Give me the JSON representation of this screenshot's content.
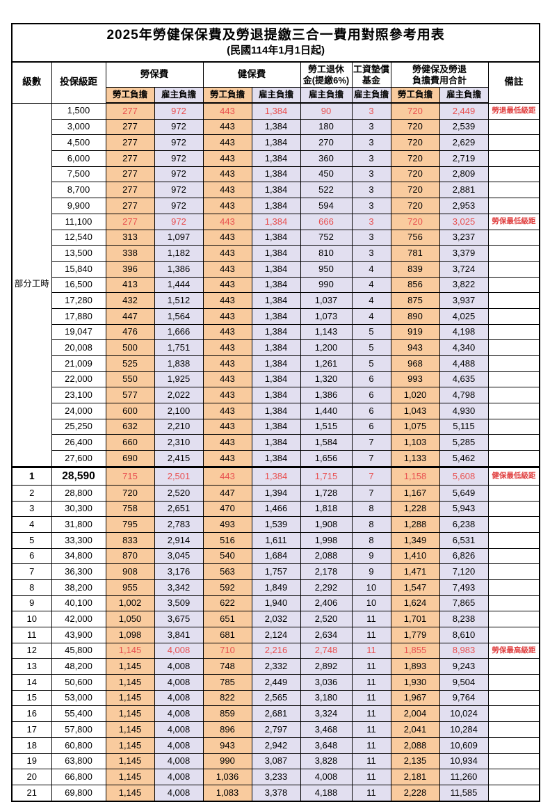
{
  "title": "2025年勞健保保費及勞退提繳三合一費用對照參考用表",
  "subtitle": "(民國114年1月1日起)",
  "header": {
    "level": "級數",
    "bracket": "投保級距",
    "labor_fee": "勞保費",
    "health_fee": "健保費",
    "pension_line1": "勞工退休",
    "pension_line2": "金(提繳6%)",
    "wage_fund_line1": "工資墊償",
    "wage_fund_line2": "基金",
    "total_line1": "勞健保及勞退",
    "total_line2": "負擔費用合計",
    "note": "備註",
    "employee_share": "勞工負擔",
    "employer_share": "雇主負擔"
  },
  "part_time_label": "部分工時",
  "value_columns": [
    "勞保費-勞工負擔",
    "勞保費-雇主負擔",
    "健保費-勞工負擔",
    "健保費-雇主負擔",
    "勞工退休金(提繳6%)-雇主負擔",
    "工資墊償基金-雇主負擔",
    "勞健保及勞退負擔費用合計-勞工負擔",
    "勞健保及勞退負擔費用合計-雇主負擔"
  ],
  "colors": {
    "employee_bg": "#F9CB9E",
    "employer_bg": "#E2DFF0",
    "value_red": "#E85050",
    "note_red": "#E04040"
  },
  "rows": [
    {
      "level": "",
      "bracket": "1,500",
      "v": [
        "277",
        "972",
        "443",
        "1,384",
        "90",
        "3",
        "720",
        "2,449"
      ],
      "note": "勞退最低級距",
      "red": true
    },
    {
      "level": "",
      "bracket": "3,000",
      "v": [
        "277",
        "972",
        "443",
        "1,384",
        "180",
        "3",
        "720",
        "2,539"
      ],
      "note": "",
      "red": false
    },
    {
      "level": "",
      "bracket": "4,500",
      "v": [
        "277",
        "972",
        "443",
        "1,384",
        "270",
        "3",
        "720",
        "2,629"
      ],
      "note": "",
      "red": false
    },
    {
      "level": "",
      "bracket": "6,000",
      "v": [
        "277",
        "972",
        "443",
        "1,384",
        "360",
        "3",
        "720",
        "2,719"
      ],
      "note": "",
      "red": false
    },
    {
      "level": "",
      "bracket": "7,500",
      "v": [
        "277",
        "972",
        "443",
        "1,384",
        "450",
        "3",
        "720",
        "2,809"
      ],
      "note": "",
      "red": false
    },
    {
      "level": "",
      "bracket": "8,700",
      "v": [
        "277",
        "972",
        "443",
        "1,384",
        "522",
        "3",
        "720",
        "2,881"
      ],
      "note": "",
      "red": false
    },
    {
      "level": "",
      "bracket": "9,900",
      "v": [
        "277",
        "972",
        "443",
        "1,384",
        "594",
        "3",
        "720",
        "2,953"
      ],
      "note": "",
      "red": false
    },
    {
      "level": "",
      "bracket": "11,100",
      "v": [
        "277",
        "972",
        "443",
        "1,384",
        "666",
        "3",
        "720",
        "3,025"
      ],
      "note": "勞保最低級距",
      "red": true
    },
    {
      "level": "",
      "bracket": "12,540",
      "v": [
        "313",
        "1,097",
        "443",
        "1,384",
        "752",
        "3",
        "756",
        "3,237"
      ],
      "note": "",
      "red": false
    },
    {
      "level": "",
      "bracket": "13,500",
      "v": [
        "338",
        "1,182",
        "443",
        "1,384",
        "810",
        "3",
        "781",
        "3,379"
      ],
      "note": "",
      "red": false
    },
    {
      "level": "",
      "bracket": "15,840",
      "v": [
        "396",
        "1,386",
        "443",
        "1,384",
        "950",
        "4",
        "839",
        "3,724"
      ],
      "note": "",
      "red": false
    },
    {
      "level": "",
      "bracket": "16,500",
      "v": [
        "413",
        "1,444",
        "443",
        "1,384",
        "990",
        "4",
        "856",
        "3,822"
      ],
      "note": "",
      "red": false
    },
    {
      "level": "",
      "bracket": "17,280",
      "v": [
        "432",
        "1,512",
        "443",
        "1,384",
        "1,037",
        "4",
        "875",
        "3,937"
      ],
      "note": "",
      "red": false
    },
    {
      "level": "",
      "bracket": "17,880",
      "v": [
        "447",
        "1,564",
        "443",
        "1,384",
        "1,073",
        "4",
        "890",
        "4,025"
      ],
      "note": "",
      "red": false
    },
    {
      "level": "",
      "bracket": "19,047",
      "v": [
        "476",
        "1,666",
        "443",
        "1,384",
        "1,143",
        "5",
        "919",
        "4,198"
      ],
      "note": "",
      "red": false
    },
    {
      "level": "",
      "bracket": "20,008",
      "v": [
        "500",
        "1,751",
        "443",
        "1,384",
        "1,200",
        "5",
        "943",
        "4,340"
      ],
      "note": "",
      "red": false
    },
    {
      "level": "",
      "bracket": "21,009",
      "v": [
        "525",
        "1,838",
        "443",
        "1,384",
        "1,261",
        "5",
        "968",
        "4,488"
      ],
      "note": "",
      "red": false
    },
    {
      "level": "",
      "bracket": "22,000",
      "v": [
        "550",
        "1,925",
        "443",
        "1,384",
        "1,320",
        "6",
        "993",
        "4,635"
      ],
      "note": "",
      "red": false
    },
    {
      "level": "",
      "bracket": "23,100",
      "v": [
        "577",
        "2,022",
        "443",
        "1,384",
        "1,386",
        "6",
        "1,020",
        "4,798"
      ],
      "note": "",
      "red": false
    },
    {
      "level": "",
      "bracket": "24,000",
      "v": [
        "600",
        "2,100",
        "443",
        "1,384",
        "1,440",
        "6",
        "1,043",
        "4,930"
      ],
      "note": "",
      "red": false
    },
    {
      "level": "",
      "bracket": "25,250",
      "v": [
        "632",
        "2,210",
        "443",
        "1,384",
        "1,515",
        "6",
        "1,075",
        "5,115"
      ],
      "note": "",
      "red": false
    },
    {
      "level": "",
      "bracket": "26,400",
      "v": [
        "660",
        "2,310",
        "443",
        "1,384",
        "1,584",
        "7",
        "1,103",
        "5,285"
      ],
      "note": "",
      "red": false
    },
    {
      "level": "",
      "bracket": "27,600",
      "v": [
        "690",
        "2,415",
        "443",
        "1,384",
        "1,656",
        "7",
        "1,133",
        "5,462"
      ],
      "note": "",
      "red": false
    },
    {
      "level": "1",
      "bracket": "28,590",
      "v": [
        "715",
        "2,501",
        "443",
        "1,384",
        "1,715",
        "7",
        "1,158",
        "5,608"
      ],
      "note": "健保最低級距",
      "red": true
    },
    {
      "level": "2",
      "bracket": "28,800",
      "v": [
        "720",
        "2,520",
        "447",
        "1,394",
        "1,728",
        "7",
        "1,167",
        "5,649"
      ],
      "note": "",
      "red": false
    },
    {
      "level": "3",
      "bracket": "30,300",
      "v": [
        "758",
        "2,651",
        "470",
        "1,466",
        "1,818",
        "8",
        "1,228",
        "5,943"
      ],
      "note": "",
      "red": false
    },
    {
      "level": "4",
      "bracket": "31,800",
      "v": [
        "795",
        "2,783",
        "493",
        "1,539",
        "1,908",
        "8",
        "1,288",
        "6,238"
      ],
      "note": "",
      "red": false
    },
    {
      "level": "5",
      "bracket": "33,300",
      "v": [
        "833",
        "2,914",
        "516",
        "1,611",
        "1,998",
        "8",
        "1,349",
        "6,531"
      ],
      "note": "",
      "red": false
    },
    {
      "level": "6",
      "bracket": "34,800",
      "v": [
        "870",
        "3,045",
        "540",
        "1,684",
        "2,088",
        "9",
        "1,410",
        "6,826"
      ],
      "note": "",
      "red": false
    },
    {
      "level": "7",
      "bracket": "36,300",
      "v": [
        "908",
        "3,176",
        "563",
        "1,757",
        "2,178",
        "9",
        "1,471",
        "7,120"
      ],
      "note": "",
      "red": false
    },
    {
      "level": "8",
      "bracket": "38,200",
      "v": [
        "955",
        "3,342",
        "592",
        "1,849",
        "2,292",
        "10",
        "1,547",
        "7,493"
      ],
      "note": "",
      "red": false
    },
    {
      "level": "9",
      "bracket": "40,100",
      "v": [
        "1,002",
        "3,509",
        "622",
        "1,940",
        "2,406",
        "10",
        "1,624",
        "7,865"
      ],
      "note": "",
      "red": false
    },
    {
      "level": "10",
      "bracket": "42,000",
      "v": [
        "1,050",
        "3,675",
        "651",
        "2,032",
        "2,520",
        "11",
        "1,701",
        "8,238"
      ],
      "note": "",
      "red": false
    },
    {
      "level": "11",
      "bracket": "43,900",
      "v": [
        "1,098",
        "3,841",
        "681",
        "2,124",
        "2,634",
        "11",
        "1,779",
        "8,610"
      ],
      "note": "",
      "red": false
    },
    {
      "level": "12",
      "bracket": "45,800",
      "v": [
        "1,145",
        "4,008",
        "710",
        "2,216",
        "2,748",
        "11",
        "1,855",
        "8,983"
      ],
      "note": "勞保最高級距",
      "red": true
    },
    {
      "level": "13",
      "bracket": "48,200",
      "v": [
        "1,145",
        "4,008",
        "748",
        "2,332",
        "2,892",
        "11",
        "1,893",
        "9,243"
      ],
      "note": "",
      "red": false
    },
    {
      "level": "14",
      "bracket": "50,600",
      "v": [
        "1,145",
        "4,008",
        "785",
        "2,449",
        "3,036",
        "11",
        "1,930",
        "9,504"
      ],
      "note": "",
      "red": false
    },
    {
      "level": "15",
      "bracket": "53,000",
      "v": [
        "1,145",
        "4,008",
        "822",
        "2,565",
        "3,180",
        "11",
        "1,967",
        "9,764"
      ],
      "note": "",
      "red": false
    },
    {
      "level": "16",
      "bracket": "55,400",
      "v": [
        "1,145",
        "4,008",
        "859",
        "2,681",
        "3,324",
        "11",
        "2,004",
        "10,024"
      ],
      "note": "",
      "red": false
    },
    {
      "level": "17",
      "bracket": "57,800",
      "v": [
        "1,145",
        "4,008",
        "896",
        "2,797",
        "3,468",
        "11",
        "2,041",
        "10,284"
      ],
      "note": "",
      "red": false
    },
    {
      "level": "18",
      "bracket": "60,800",
      "v": [
        "1,145",
        "4,008",
        "943",
        "2,942",
        "3,648",
        "11",
        "2,088",
        "10,609"
      ],
      "note": "",
      "red": false
    },
    {
      "level": "19",
      "bracket": "63,800",
      "v": [
        "1,145",
        "4,008",
        "990",
        "3,087",
        "3,828",
        "11",
        "2,135",
        "10,934"
      ],
      "note": "",
      "red": false
    },
    {
      "level": "20",
      "bracket": "66,800",
      "v": [
        "1,145",
        "4,008",
        "1,036",
        "3,233",
        "4,008",
        "11",
        "2,181",
        "11,260"
      ],
      "note": "",
      "red": false
    },
    {
      "level": "21",
      "bracket": "69,800",
      "v": [
        "1,145",
        "4,008",
        "1,083",
        "3,378",
        "4,188",
        "11",
        "2,228",
        "11,585"
      ],
      "note": "",
      "red": false
    }
  ]
}
